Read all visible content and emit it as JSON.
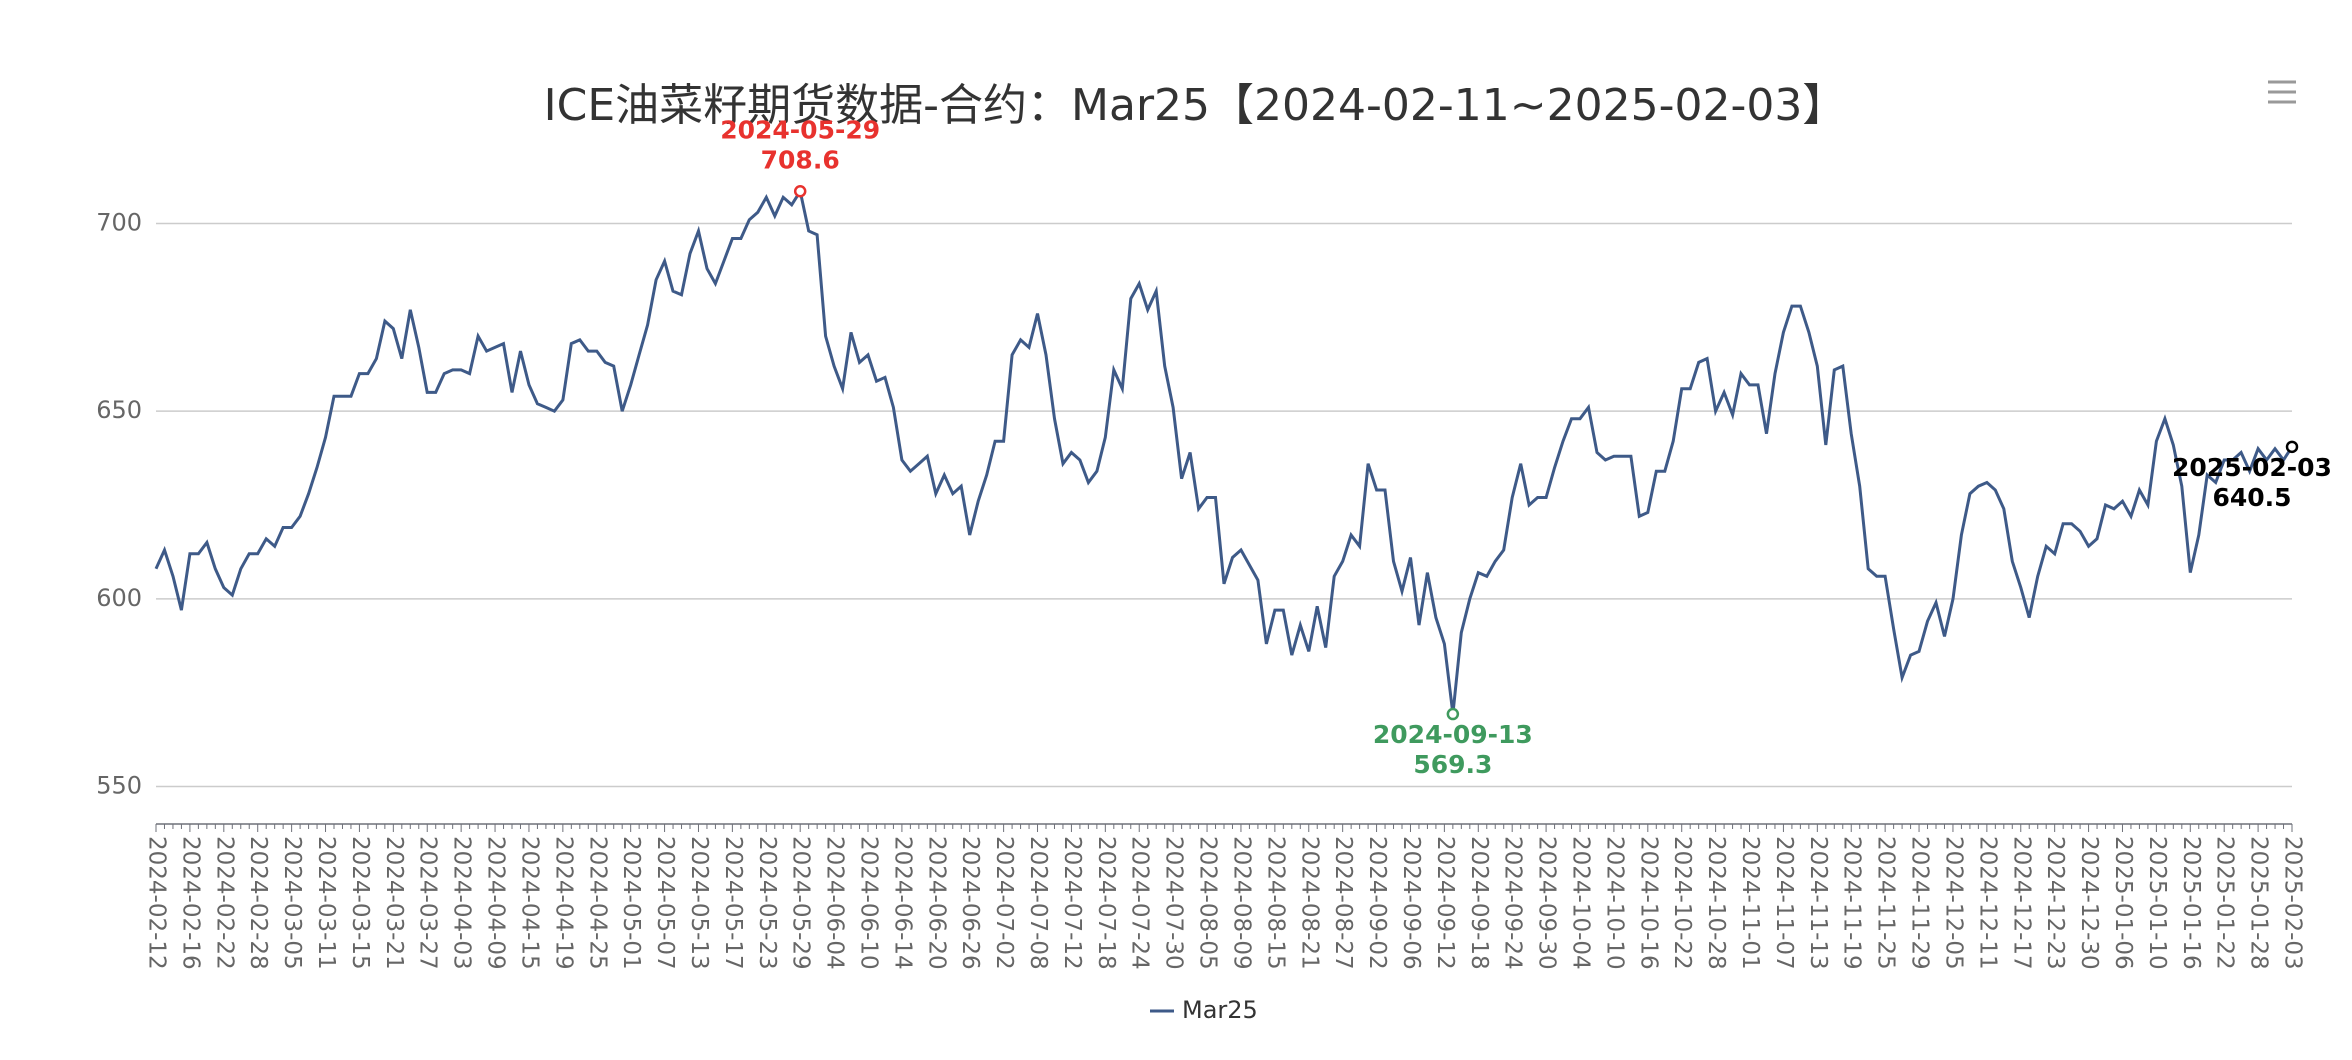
{
  "chart_data": {
    "type": "line",
    "title": "ICE油菜籽期货数据-合约：Mar25【2024-02-11~2025-02-03】",
    "categories": [
      "2024-02-12",
      null,
      null,
      null,
      "2024-02-16",
      null,
      null,
      null,
      "2024-02-22",
      null,
      null,
      null,
      "2024-02-28",
      null,
      null,
      null,
      "2024-03-05",
      null,
      null,
      null,
      "2024-03-11",
      null,
      null,
      null,
      "2024-03-15",
      null,
      null,
      null,
      "2024-03-21",
      null,
      null,
      null,
      "2024-03-27",
      null,
      null,
      null,
      "2024-04-03",
      null,
      null,
      null,
      "2024-04-09",
      null,
      null,
      null,
      "2024-04-15",
      null,
      null,
      null,
      "2024-04-19",
      null,
      null,
      null,
      "2024-04-25",
      null,
      null,
      null,
      "2024-05-01",
      null,
      null,
      null,
      "2024-05-07",
      null,
      null,
      null,
      "2024-05-13",
      null,
      null,
      null,
      "2024-05-17",
      null,
      null,
      null,
      "2024-05-23",
      null,
      null,
      null,
      "2024-05-29",
      null,
      null,
      null,
      "2024-06-04",
      null,
      null,
      null,
      "2024-06-10",
      null,
      null,
      null,
      "2024-06-14",
      null,
      null,
      null,
      "2024-06-20",
      null,
      null,
      null,
      "2024-06-26",
      null,
      null,
      null,
      "2024-07-02",
      null,
      null,
      null,
      "2024-07-08",
      null,
      null,
      null,
      "2024-07-12",
      null,
      null,
      null,
      "2024-07-18",
      null,
      null,
      null,
      "2024-07-24",
      null,
      null,
      null,
      "2024-07-30",
      null,
      null,
      null,
      "2024-08-05",
      null,
      null,
      null,
      "2024-08-09",
      null,
      null,
      null,
      "2024-08-15",
      null,
      null,
      null,
      "2024-08-21",
      null,
      null,
      null,
      "2024-08-27",
      null,
      null,
      null,
      "2024-09-02",
      null,
      null,
      null,
      "2024-09-06",
      null,
      null,
      null,
      "2024-09-12",
      null,
      null,
      null,
      "2024-09-18",
      null,
      null,
      null,
      "2024-09-24",
      null,
      null,
      null,
      "2024-09-30",
      null,
      null,
      null,
      "2024-10-04",
      null,
      null,
      null,
      "2024-10-10",
      null,
      null,
      null,
      "2024-10-16",
      null,
      null,
      null,
      "2024-10-22",
      null,
      null,
      null,
      "2024-10-28",
      null,
      null,
      null,
      "2024-11-01",
      null,
      null,
      null,
      "2024-11-07",
      null,
      null,
      null,
      "2024-11-13",
      null,
      null,
      null,
      "2024-11-19",
      null,
      null,
      null,
      "2024-11-25",
      null,
      null,
      null,
      "2024-11-29",
      null,
      null,
      null,
      "2024-12-05",
      null,
      null,
      null,
      "2024-12-11",
      null,
      null,
      null,
      "2024-12-17",
      null,
      null,
      null,
      "2024-12-23",
      null,
      null,
      null,
      "2024-12-30",
      null,
      null,
      null,
      "2025-01-06",
      null,
      null,
      null,
      "2025-01-10",
      null,
      null,
      null,
      "2025-01-16",
      null,
      null,
      null,
      "2025-01-22",
      null,
      null,
      null,
      "2025-01-28",
      null,
      null,
      null,
      "2025-02-03"
    ],
    "series": [
      {
        "name": "Mar25",
        "color": "#3e5a88",
        "values": [
          608,
          613,
          606,
          597,
          612,
          612,
          615,
          608,
          603,
          601,
          608,
          612,
          612,
          616,
          614,
          619,
          619,
          622,
          628,
          635,
          643,
          654,
          654,
          654,
          660,
          660,
          664,
          674,
          672,
          664,
          677,
          667,
          655,
          655,
          660,
          661,
          661,
          660,
          670,
          666,
          667,
          668,
          655,
          666,
          657,
          652,
          651,
          650,
          653,
          668,
          669,
          666,
          666,
          663,
          662,
          650,
          657,
          665,
          673,
          685,
          690,
          682,
          681,
          692,
          698,
          688,
          684,
          690,
          696,
          696,
          701,
          703,
          707,
          702,
          707,
          705,
          708.6,
          698,
          697,
          670,
          662,
          656,
          671,
          663,
          665,
          658,
          659,
          651,
          637,
          634,
          636,
          638,
          628,
          633,
          628,
          630,
          617,
          626,
          633,
          642,
          642,
          665,
          669,
          667,
          676,
          665,
          648,
          636,
          639,
          637,
          631,
          634,
          643,
          661,
          656,
          680,
          684,
          677,
          682,
          662,
          651,
          632,
          639,
          624,
          627,
          627,
          604,
          611,
          613,
          609,
          605,
          588,
          597,
          597,
          585,
          593,
          586,
          598,
          587,
          606,
          610,
          617,
          614,
          636,
          629,
          629,
          610,
          602,
          611,
          593,
          607,
          595,
          588,
          569.3,
          591,
          600,
          607,
          606,
          610,
          613,
          627,
          636,
          625,
          627,
          627,
          635,
          642,
          648,
          648,
          651,
          639,
          637,
          638,
          638,
          638,
          622,
          623,
          634,
          634,
          642,
          656,
          656,
          663,
          664,
          650,
          655,
          649,
          660,
          657,
          657,
          644,
          660,
          671,
          678,
          678,
          671,
          662,
          641,
          661,
          662,
          644,
          630,
          608,
          606,
          606,
          592,
          579,
          585,
          586,
          594,
          599,
          590,
          600,
          617,
          628,
          630,
          631,
          629,
          624,
          610,
          603,
          595,
          606,
          614,
          612,
          620,
          620,
          618,
          614,
          616,
          625,
          624,
          626,
          622,
          629,
          625,
          642,
          648,
          641,
          630,
          607,
          617,
          633,
          631,
          637,
          637,
          639,
          634,
          640,
          637,
          640,
          637,
          640.5
        ]
      }
    ],
    "annotations": [
      {
        "date": "2024-05-29",
        "value": 708.6,
        "color": "#e8322e"
      },
      {
        "date": "2024-09-13",
        "value": 569.3,
        "color": "#3f9a5e"
      },
      {
        "date": "2025-02-03",
        "value": 640.5,
        "color": "#000000"
      }
    ],
    "ylim": [
      540,
      710
    ],
    "yticks": [
      550,
      600,
      650,
      700
    ],
    "grid": true
  }
}
